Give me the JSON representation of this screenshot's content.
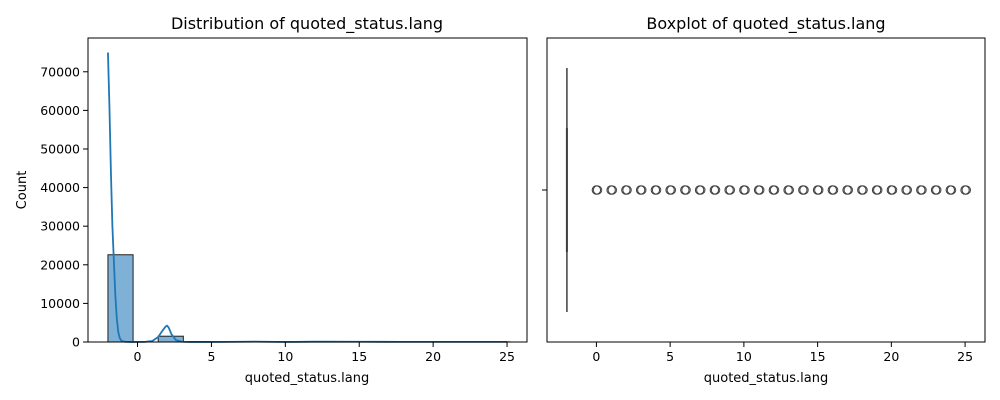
{
  "figure": {
    "colors": {
      "bar_fill": "#7fb1d6",
      "bar_edge": "#1f1f1f",
      "kde_line": "#1f77b4",
      "box_line": "#3f3f3f",
      "flier": "#3f3f3f"
    }
  },
  "chart_data": [
    {
      "type": "bar",
      "subtype": "histogram with KDE",
      "title": "Distribution of quoted_status.lang",
      "xlabel": "quoted_status.lang",
      "ylabel": "Count",
      "xlim": [
        -3.35,
        26.35
      ],
      "ylim": [
        0,
        78750
      ],
      "xticks": [
        0,
        5,
        10,
        15,
        20,
        25
      ],
      "xtick_labels": [
        "0",
        "5",
        "10",
        "15",
        "20",
        "25"
      ],
      "yticks": [
        0,
        10000,
        20000,
        30000,
        40000,
        50000,
        60000,
        70000
      ],
      "ytick_labels": [
        "0",
        "10000",
        "20000",
        "30000",
        "40000",
        "50000",
        "60000",
        "70000"
      ],
      "bin_width": 1.7,
      "bins": [
        {
          "x0": -2.0,
          "x1": -0.3,
          "count": 22600
        },
        {
          "x0": -0.3,
          "x1": 1.4,
          "count": 0
        },
        {
          "x0": 1.4,
          "x1": 3.1,
          "count": 1500
        },
        {
          "x0": 3.1,
          "x1": 4.8,
          "count": 120
        },
        {
          "x0": 4.8,
          "x1": 6.5,
          "count": 80
        },
        {
          "x0": 6.5,
          "x1": 8.2,
          "count": 60
        },
        {
          "x0": 8.2,
          "x1": 9.9,
          "count": 50
        },
        {
          "x0": 9.9,
          "x1": 11.6,
          "count": 70
        },
        {
          "x0": 11.6,
          "x1": 13.3,
          "count": 40
        },
        {
          "x0": 13.3,
          "x1": 15.0,
          "count": 50
        },
        {
          "x0": 15.0,
          "x1": 16.7,
          "count": 30
        },
        {
          "x0": 16.7,
          "x1": 18.4,
          "count": 40
        },
        {
          "x0": 18.4,
          "x1": 20.1,
          "count": 20
        },
        {
          "x0": 20.1,
          "x1": 21.8,
          "count": 30
        },
        {
          "x0": 21.8,
          "x1": 23.5,
          "count": 30
        },
        {
          "x0": 23.5,
          "x1": 25.2,
          "count": 40
        }
      ],
      "kde": {
        "x": [
          -2.0,
          -1.9,
          -1.8,
          -1.7,
          -1.6,
          -1.5,
          -1.4,
          -1.3,
          -1.2,
          -1.1,
          -1.0,
          -0.8,
          -0.5,
          0.0,
          0.5,
          1.0,
          1.4,
          1.7,
          1.9,
          2.0,
          2.1,
          2.3,
          2.6,
          3.0,
          3.5,
          5.0,
          8.0,
          10.0,
          12.0,
          15.0,
          18.0,
          21.0,
          23.0,
          25.0
        ],
        "y": [
          75000,
          61000,
          44000,
          30000,
          21000,
          12000,
          6000,
          2500,
          1000,
          400,
          150,
          50,
          20,
          10,
          30,
          250,
          1300,
          3000,
          4000,
          4200,
          3800,
          2000,
          500,
          60,
          10,
          0,
          100,
          0,
          80,
          60,
          40,
          40,
          30,
          30
        ]
      },
      "grid": false
    },
    {
      "type": "boxplot",
      "title": "Boxplot of quoted_status.lang",
      "xlabel": "quoted_status.lang",
      "ylabel": "",
      "xlim": [
        -3.35,
        26.35
      ],
      "xticks": [
        0,
        5,
        10,
        15,
        20,
        25
      ],
      "xtick_labels": [
        "0",
        "5",
        "10",
        "15",
        "20",
        "25"
      ],
      "box": {
        "whisker_low": -2,
        "q1": -2,
        "median": -2,
        "q3": -2,
        "whisker_high": -2
      },
      "fliers": [
        0,
        1,
        2,
        3,
        4,
        5,
        6,
        7,
        8,
        9,
        10,
        11,
        12,
        13,
        14,
        15,
        16,
        17,
        18,
        19,
        20,
        21,
        22,
        23,
        24,
        25
      ],
      "grid": false
    }
  ]
}
